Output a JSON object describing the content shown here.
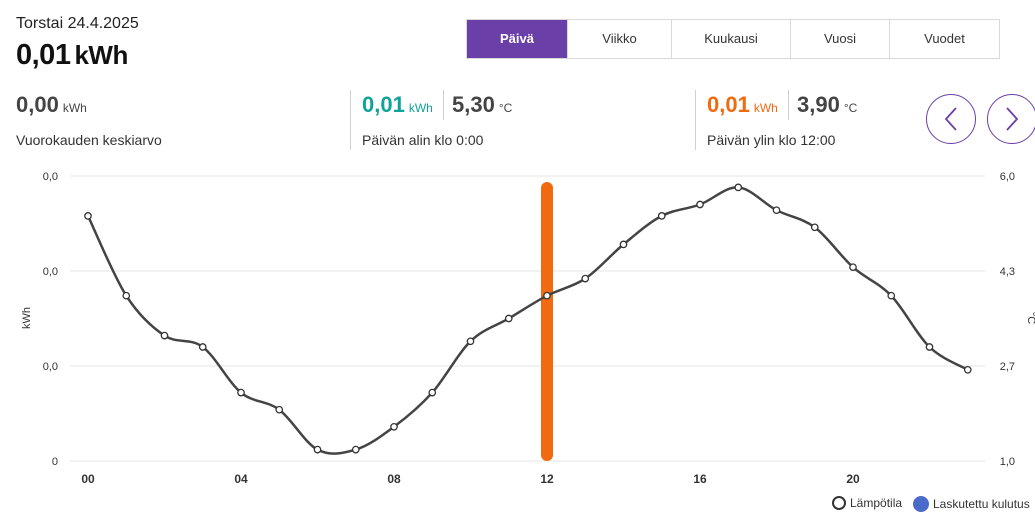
{
  "header": {
    "date": "Torstai 24.4.2025",
    "total_value": "0,01",
    "total_unit": "kWh"
  },
  "tabs": [
    {
      "label": "Päivä",
      "active": true
    },
    {
      "label": "Viikko",
      "active": false
    },
    {
      "label": "Kuukausi",
      "active": false
    },
    {
      "label": "Vuosi",
      "active": false
    },
    {
      "label": "Vuodet",
      "active": false
    }
  ],
  "stats": {
    "average": {
      "value": "0,00",
      "unit": "kWh",
      "caption": "Vuorokauden keskiarvo"
    },
    "min": {
      "value": "0,01",
      "unit": "kWh",
      "temp": "5,30",
      "temp_unit": "°C",
      "caption": "Päivän alin klo 0:00",
      "color": "#10a39a"
    },
    "max": {
      "value": "0,01",
      "unit": "kWh",
      "temp": "3,90",
      "temp_unit": "°C",
      "caption": "Päivän ylin klo 12:00",
      "color": "#f26a10"
    }
  },
  "nav": {
    "prev_icon": "chevron-left-icon",
    "next_icon": "chevron-right-icon",
    "accent": "#6b3fa8"
  },
  "chart_data": {
    "type": "line",
    "xlabel": "",
    "ylabel": "kWh",
    "ylabel_right": "°C",
    "x": [
      0,
      1,
      2,
      3,
      4,
      5,
      6,
      7,
      8,
      9,
      10,
      11,
      12,
      13,
      14,
      15,
      16,
      17,
      18,
      19,
      20,
      21,
      22,
      23
    ],
    "x_tick_labels": [
      "00",
      "04",
      "08",
      "12",
      "16",
      "20"
    ],
    "y_left_tick_labels": [
      "0",
      "0,0",
      "0,0",
      "0,0"
    ],
    "y_right_tick_labels": [
      "1,0",
      "2,7",
      "4,3",
      "6,0"
    ],
    "y_right_range": [
      1.0,
      6.0
    ],
    "series": [
      {
        "name": "Lämpötila",
        "axis": "right",
        "type": "line",
        "color": "#444444",
        "values": [
          5.3,
          3.9,
          3.2,
          3.0,
          2.2,
          1.9,
          1.2,
          1.2,
          1.6,
          2.2,
          3.1,
          3.5,
          3.9,
          4.2,
          4.8,
          5.3,
          5.5,
          5.8,
          5.4,
          5.1,
          4.4,
          3.9,
          3.0,
          2.6
        ]
      },
      {
        "name": "Laskutettu kulutus",
        "axis": "left",
        "type": "bar",
        "color": "#f26a10",
        "legend_color": "#4a6bc9",
        "values": [
          0,
          0,
          0,
          0,
          0,
          0,
          0,
          0,
          0,
          0,
          0,
          0,
          0.01,
          0,
          0,
          0,
          0,
          0,
          0,
          0,
          0,
          0,
          0,
          0
        ]
      }
    ],
    "grid": true,
    "legend_position": "bottom-right"
  }
}
